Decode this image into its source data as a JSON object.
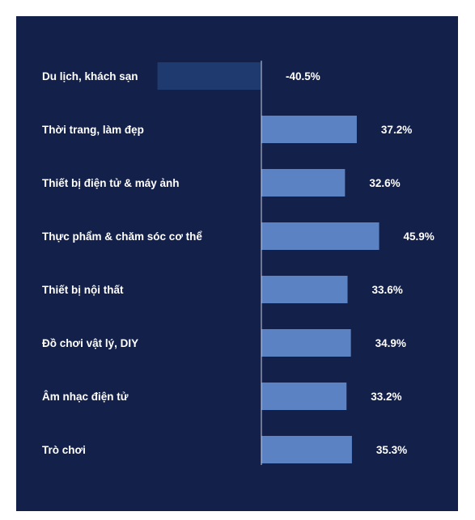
{
  "chart_data": {
    "type": "bar",
    "orientation": "horizontal",
    "categories": [
      "Du lịch, khách sạn",
      "Thời trang, làm đẹp",
      "Thiết bị điện tử & máy ảnh",
      "Thực phẩm & chăm sóc cơ thể",
      "Thiết bị nội thất",
      "Đồ chơi vật lý, DIY",
      "Âm nhạc điện tử",
      "Trò chơi"
    ],
    "values": [
      -40.5,
      37.2,
      32.6,
      45.9,
      33.6,
      34.9,
      33.2,
      35.3
    ],
    "value_labels": [
      "-40.5%",
      "37.2%",
      "32.6%",
      "45.9%",
      "33.6%",
      "34.9%",
      "33.2%",
      "35.3%"
    ],
    "title": "",
    "xlabel": "",
    "ylabel": "",
    "grid": false,
    "legend": "none",
    "colors": {
      "background": "#13204a",
      "positive_bar": "#5b83c4",
      "negative_bar": "#1f3a6e",
      "axis": "#c8cfe0",
      "text": "#ffffff"
    }
  }
}
